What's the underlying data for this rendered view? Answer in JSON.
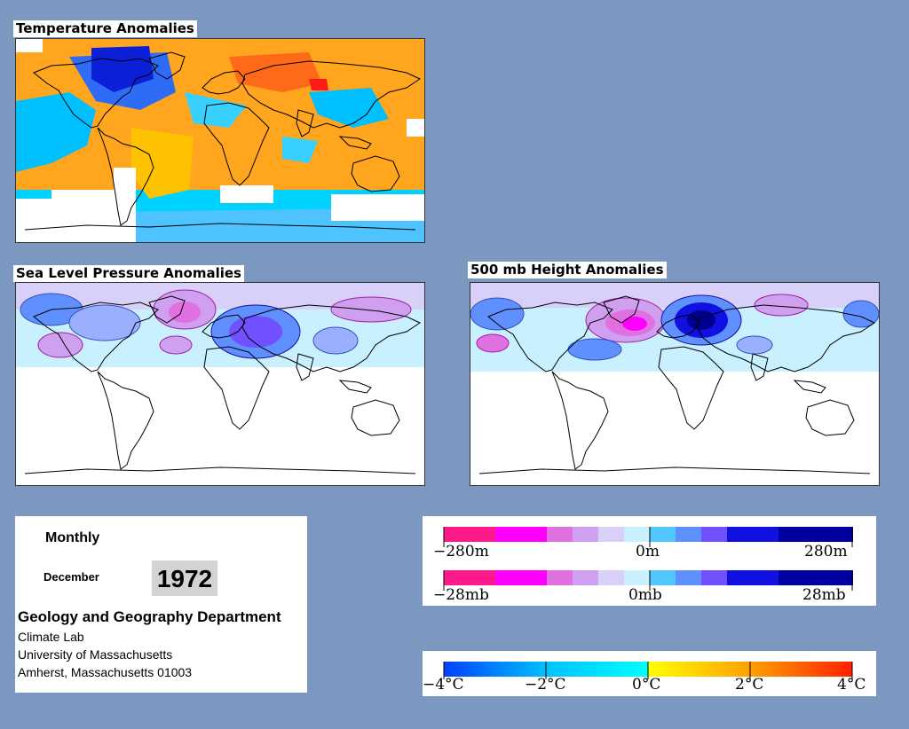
{
  "panels": {
    "temperature": {
      "title": "Temperature Anomalies"
    },
    "slp": {
      "title": "Sea Level Pressure Anomalies"
    },
    "height": {
      "title": "500 mb Height Anomalies"
    }
  },
  "info": {
    "period": "Monthly",
    "month": "December",
    "year": "1972",
    "department": "Geology and Geography Department",
    "lab": "Climate Lab",
    "university": "University of Massachusetts",
    "address": "Amherst, Massachusetts 01003"
  },
  "legends": {
    "height": {
      "min": "−280m",
      "mid": "0m",
      "max": "280m"
    },
    "pressure": {
      "min": "−28mb",
      "mid": "0mb",
      "max": "28mb"
    },
    "temperature": {
      "ticks": [
        "−4°C",
        "−2°C",
        "0°C",
        "2°C",
        "4°C"
      ]
    }
  },
  "colors": {
    "background": "#7d98c0",
    "anomaly_positive_pressure": [
      "#ff1a8c",
      "#ff00ff",
      "#e070e0",
      "#d0a0f0",
      "#d8d0f8"
    ],
    "anomaly_negative_pressure": [
      "#c8f0ff",
      "#50c8ff",
      "#6090ff",
      "#7050ff",
      "#1010e0",
      "#0000a0"
    ],
    "temperature_ramp": [
      "#0040ff",
      "#00c0ff",
      "#00ffff",
      "#ffff00",
      "#ffa000",
      "#ff3000"
    ]
  }
}
